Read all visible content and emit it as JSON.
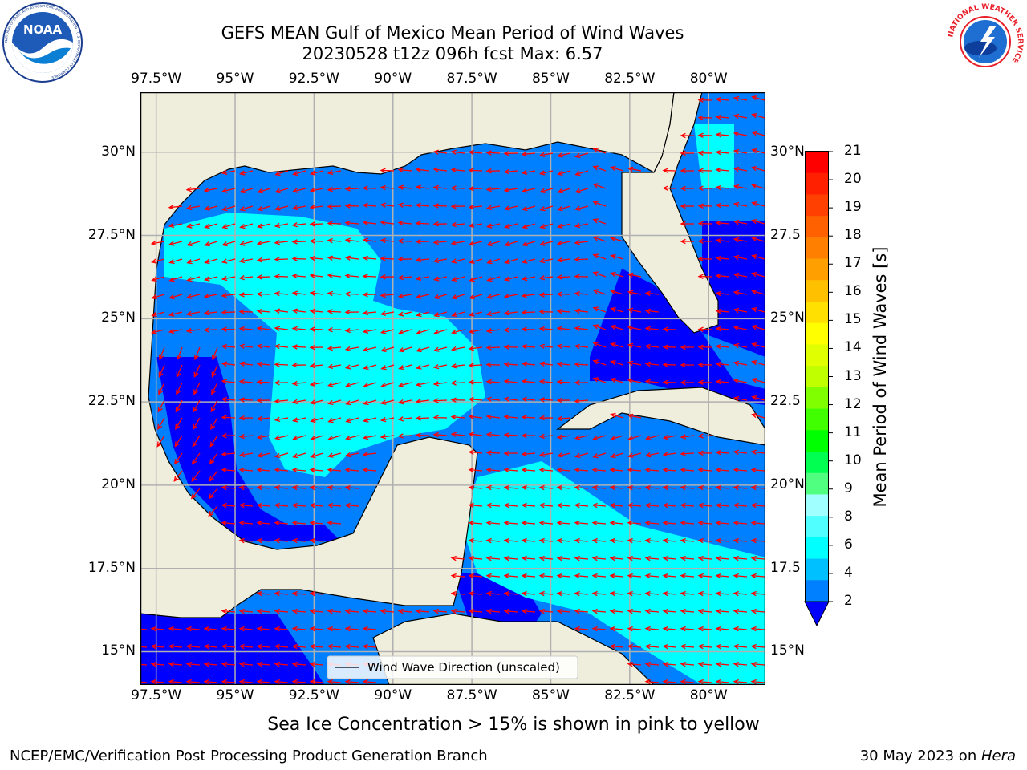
{
  "header": {
    "title_line1": "GEFS MEAN Gulf of Mexico Mean Period of Wind Waves",
    "title_line2": "20230528 t12z 096h fcst   Max: 6.57"
  },
  "logos": {
    "left": {
      "name": "noaa-logo",
      "text": "NOAA",
      "ring_text": "NATIONAL OCEANIC AND ATMOSPHERIC ADMINISTRATION · U.S. DEPARTMENT OF COMMERCE"
    },
    "right": {
      "name": "nws-logo",
      "ring_text": "NATIONAL WEATHER SERVICE"
    }
  },
  "map": {
    "lon_ticks_top": [
      "97.5°W",
      "95°W",
      "92.5°W",
      "90°W",
      "87.5°W",
      "85°W",
      "82.5°W",
      "80°W"
    ],
    "lon_ticks_bottom": [
      "97.5°W",
      "95°W",
      "92.5°W",
      "90°W",
      "87.5°W",
      "85°W",
      "82.5°W",
      "80°W"
    ],
    "lat_ticks_left": [
      "30°N",
      "27.5°N",
      "25°N",
      "22.5°N",
      "20°N",
      "17.5°N",
      "15°N"
    ],
    "lat_ticks_right": [
      "30°N",
      "27.5",
      "25°N",
      "22.5",
      "20°N",
      "17.5",
      "15°N"
    ],
    "lon_range": [
      -98,
      -78.2
    ],
    "lat_range": [
      14,
      31.8
    ],
    "colors": {
      "land": "#efeedd",
      "band_2_4": "#0080ff",
      "band_lt_2": "#0000ff",
      "band_4_6": "#00ffff",
      "arrow": "#ff0000",
      "grid": "#b0b0b0"
    },
    "legend_label": "Wind Wave Direction (unscaled)"
  },
  "colorbar": {
    "label": "Mean Period of Wind Waves [s]",
    "ticks": [
      "21",
      "20",
      "19",
      "18",
      "17",
      "16",
      "15",
      "14",
      "13",
      "12",
      "11",
      "10",
      "9",
      "8",
      "6",
      "4",
      "2"
    ],
    "colors": [
      "#ff0000",
      "#ff2000",
      "#ff4000",
      "#ff6000",
      "#ff8000",
      "#ffa000",
      "#ffc000",
      "#ffe000",
      "#ffff00",
      "#e0ff00",
      "#c0ff00",
      "#80ff00",
      "#40ff00",
      "#00ff00",
      "#00ff50",
      "#50ff80",
      "#a0ffff",
      "#50ffff",
      "#00ffff",
      "#00c0ff",
      "#0080ff"
    ],
    "extend_color": "#0000ff"
  },
  "caption": "Sea Ice Concentration > 15% is shown in pink to yellow",
  "footer": {
    "left": "NCEP/EMC/Verification Post Processing Product Generation Branch",
    "right_date": "30 May 2023 on ",
    "right_host": "Hera"
  }
}
